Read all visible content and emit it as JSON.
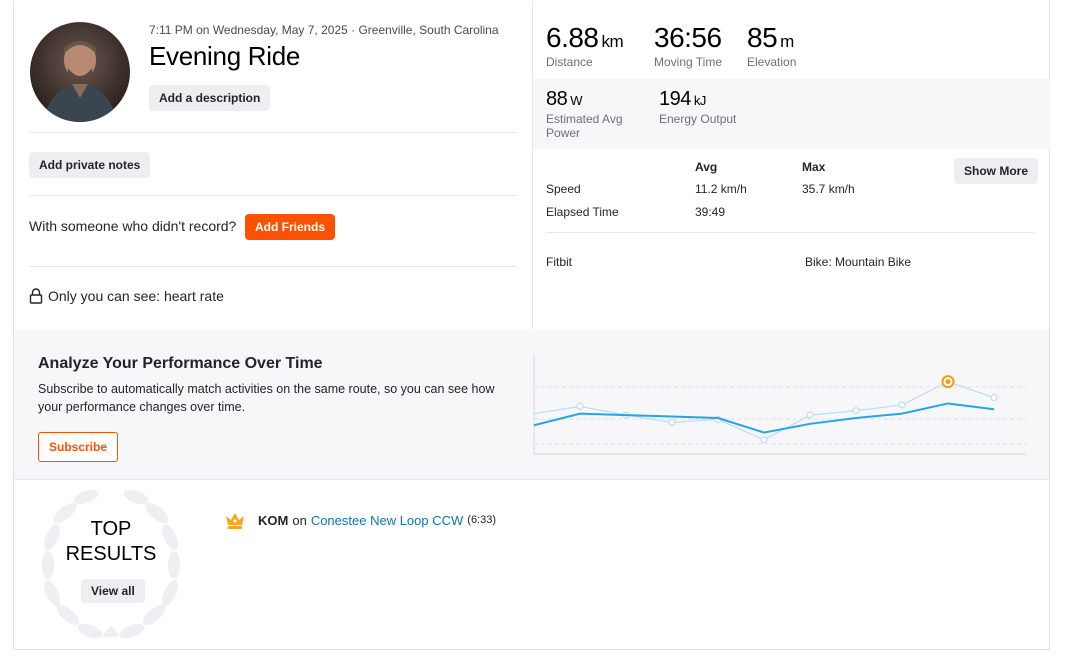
{
  "activity": {
    "meta": "7:11 PM on Wednesday, May 7, 2025 · Greenville, South Carolina",
    "title": "Evening Ride",
    "add_description": "Add a description",
    "add_private_notes": "Add private notes",
    "with_someone": "With someone who didn't record?",
    "add_friends": "Add Friends",
    "privacy": "Only you can see: heart rate"
  },
  "stats": {
    "primary": [
      {
        "value": "6.88",
        "unit": "km",
        "label": "Distance"
      },
      {
        "value": "36:56",
        "unit": "",
        "label": "Moving Time"
      },
      {
        "value": "85",
        "unit": "m",
        "label": "Elevation"
      }
    ],
    "secondary": [
      {
        "value": "88",
        "unit": "W",
        "label": "Estimated Avg Power"
      },
      {
        "value": "194",
        "unit": "kJ",
        "label": "Energy Output"
      }
    ],
    "table": {
      "headers": {
        "avg": "Avg",
        "max": "Max"
      },
      "rows": [
        {
          "label": "Speed",
          "avg": "11.2 km/h",
          "max": "35.7 km/h"
        },
        {
          "label": "Elapsed Time",
          "avg": "39:49",
          "max": ""
        }
      ],
      "show_more": "Show More"
    },
    "device": "Fitbit",
    "bike": "Bike: Mountain Bike"
  },
  "analyze": {
    "title": "Analyze Your Performance Over Time",
    "subtitle": "Subscribe to automatically match activities on the same route, so you can see how your performance changes over time.",
    "subscribe": "Subscribe",
    "accent": "#fc5200"
  },
  "chart_data": {
    "type": "line",
    "x": [
      1,
      2,
      3,
      4,
      5,
      6,
      7,
      8,
      9,
      10,
      11
    ],
    "series": [
      {
        "values": [
          52,
          60,
          59,
          58,
          57,
          47,
          53,
          57,
          60,
          67,
          63
        ]
      },
      {
        "values": [
          60,
          65,
          59,
          54,
          56,
          42,
          59,
          62,
          66,
          82,
          71
        ]
      }
    ],
    "highlight_index": 9,
    "colors": {
      "main": "#23a6e5",
      "faint": "#b9def2",
      "highlight": "#f39c12"
    }
  },
  "top_results": {
    "title_line1": "TOP",
    "title_line2": "RESULTS",
    "view_all": "View all",
    "items": [
      {
        "badge": "KOM",
        "on": "on",
        "segment": "Conestee New Loop CCW",
        "time": "(6:33)"
      }
    ]
  }
}
